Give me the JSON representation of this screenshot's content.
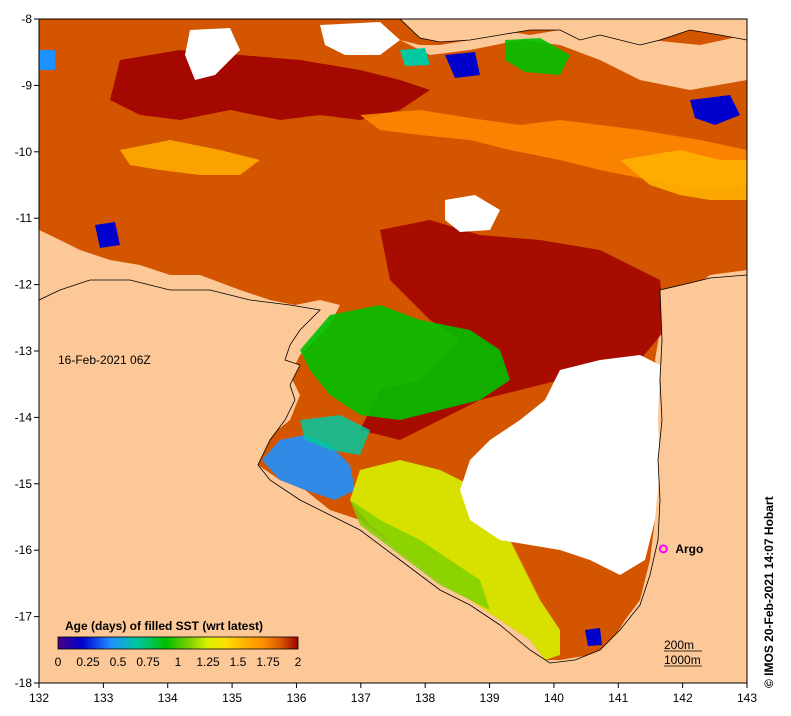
{
  "map": {
    "date_label": "16-Feb-2021 06Z",
    "legend": {
      "title": "Age (days) of filled SST (wrt latest)",
      "ticks": [
        "0",
        "0.25",
        "0.5",
        "0.75",
        "1",
        "1.25",
        "1.5",
        "1.75",
        "2"
      ],
      "colors": [
        "#ffffff",
        "#4b0082",
        "#0000cd",
        "#1e90ff",
        "#00c8a0",
        "#00c000",
        "#7fd000",
        "#d8f000",
        "#ffe000",
        "#ffb000",
        "#ff8c00",
        "#d45500",
        "#a00000"
      ]
    },
    "marker": {
      "label": "Argo",
      "lon": 141.7,
      "lat": -15.98,
      "color": "#ff00ff"
    },
    "contours": {
      "label_200": "200m",
      "label_1000": "1000m"
    },
    "credit": "© IMOS 20-Feb-2021 14:07 Hobart",
    "x_axis": {
      "ticks": [
        "132",
        "133",
        "134",
        "135",
        "136",
        "137",
        "138",
        "139",
        "140",
        "141",
        "142",
        "143"
      ],
      "range": [
        132,
        143
      ]
    },
    "y_axis": {
      "ticks": [
        "-8",
        "-9",
        "-10",
        "-11",
        "-12",
        "-13",
        "-14",
        "-15",
        "-16",
        "-17",
        "-18"
      ],
      "range": [
        -18,
        -8
      ]
    },
    "colors": {
      "land": "#fdc898",
      "ocean_dominant": "#d45500",
      "no_data": "#ffffff"
    }
  }
}
